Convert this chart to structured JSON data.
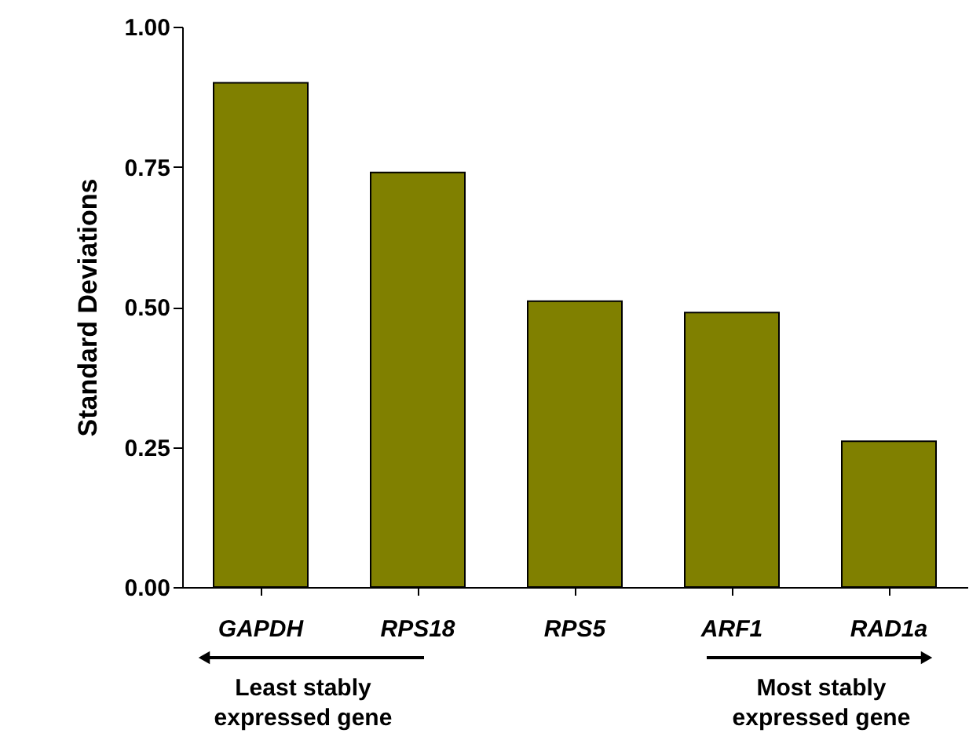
{
  "chart_data": {
    "type": "bar",
    "ylabel": "Standard Deviations",
    "categories": [
      "GAPDH",
      "RPS18",
      "RPS5",
      "ARF1",
      "RAD1a"
    ],
    "values": [
      0.9,
      0.74,
      0.51,
      0.49,
      0.26
    ],
    "color": "#808000",
    "ylim": [
      0,
      1
    ],
    "yticks": [
      {
        "value": 0,
        "label": "0.00"
      },
      {
        "value": 0.25,
        "label": "0.25"
      },
      {
        "value": 0.5,
        "label": "0.50"
      },
      {
        "value": 0.75,
        "label": "0.75"
      },
      {
        "value": 1,
        "label": "1.00"
      }
    ],
    "grid": false,
    "annotations": [
      "Least stably\nexpressed gene",
      "Most stably\nexpressed gene"
    ]
  }
}
